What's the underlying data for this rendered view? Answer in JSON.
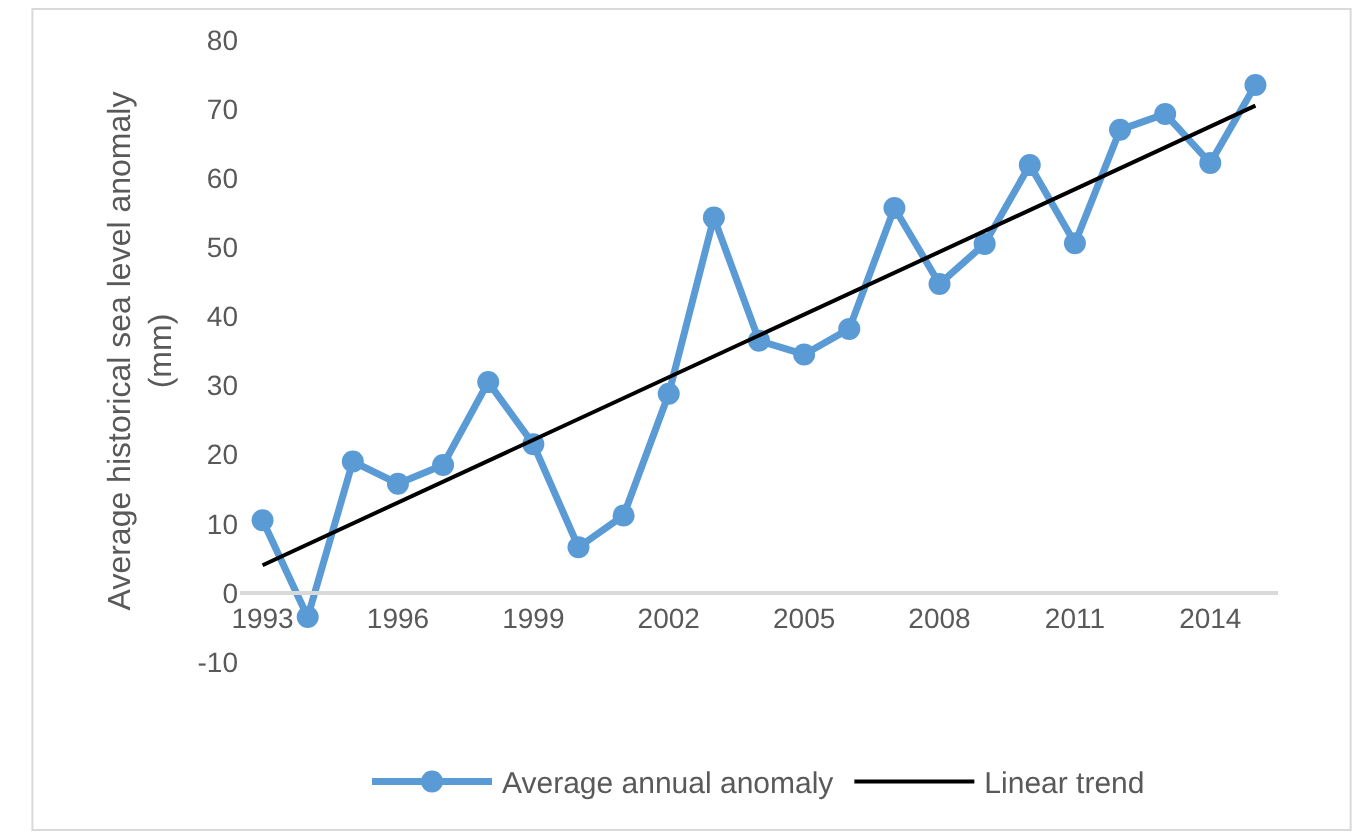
{
  "chart_data": {
    "type": "line",
    "ylabel": "Average historical sea level anomaly\n(mm)",
    "ylim": [
      -10,
      80
    ],
    "yticks": [
      -10,
      0,
      10,
      20,
      30,
      40,
      50,
      60,
      70,
      80
    ],
    "xlim": [
      1992.5,
      2015.5
    ],
    "xticks": [
      1993,
      1996,
      1999,
      2002,
      2005,
      2008,
      2011,
      2014
    ],
    "grid": false,
    "legend": "bottom",
    "series": [
      {
        "name": "Average annual anomaly",
        "color": "#5b9bd5",
        "marker": "circle",
        "x": [
          1993,
          1994,
          1995,
          1996,
          1997,
          1998,
          1999,
          2000,
          2001,
          2002,
          2003,
          2004,
          2005,
          2006,
          2007,
          2008,
          2009,
          2010,
          2011,
          2012,
          2013,
          2014,
          2015
        ],
        "values": [
          10.5,
          -3.5,
          19,
          15.8,
          18.5,
          30.5,
          21.5,
          6.6,
          11.2,
          28.8,
          54.3,
          36.5,
          34.5,
          38.2,
          55.7,
          44.7,
          50.5,
          61.9,
          50.6,
          67,
          69.3,
          62.2,
          73.5
        ]
      },
      {
        "name": "Linear trend",
        "color": "#000000",
        "marker": "none",
        "x": [
          1993,
          2015
        ],
        "values": [
          4,
          70.5
        ]
      }
    ]
  }
}
